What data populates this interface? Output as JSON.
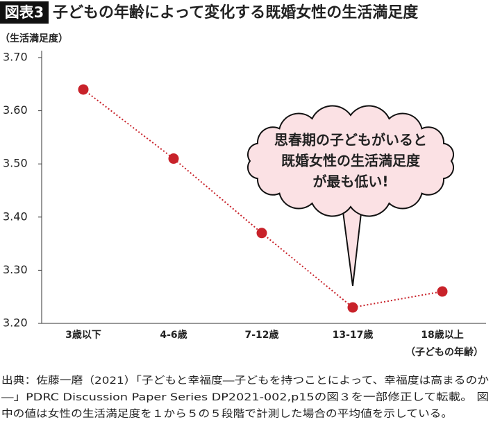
{
  "chart_data": {
    "type": "line",
    "badge": "図表3",
    "title": "子どもの年齢によって変化する既婚女性の生活満足度",
    "y_label": "（生活満足度）",
    "x_label": "（子どもの年齢）",
    "categories": [
      "3歳以下",
      "4-6歳",
      "7-12歳",
      "13-17歳",
      "18歳以上"
    ],
    "values": [
      3.64,
      3.51,
      3.37,
      3.23,
      3.26
    ],
    "color": "#c8222a",
    "ylim": [
      3.2,
      3.7
    ],
    "yticks": [
      {
        "value": 3.2,
        "label": "3.20"
      },
      {
        "value": 3.3,
        "label": "3.30"
      },
      {
        "value": 3.4,
        "label": "3.40"
      },
      {
        "value": 3.5,
        "label": "3.50"
      },
      {
        "value": 3.6,
        "label": "3.60"
      },
      {
        "value": 3.7,
        "label": "3.70"
      }
    ],
    "annotation": [
      "思春期の子どもがいると",
      "既婚女性の生活満足度",
      "が最も低い!"
    ],
    "source": [
      "出典：佐藤一磨（2021）「子どもと幸福度―子どもを持つことによって、幸福度は高まるのか",
      "―」PDRC Discussion Paper Series DP2021-002,p15の図３を一部修正して転載。 図",
      "中の値は女性の生活満足度を１から５の５段階で計測した場合の平均値を示している。"
    ]
  }
}
